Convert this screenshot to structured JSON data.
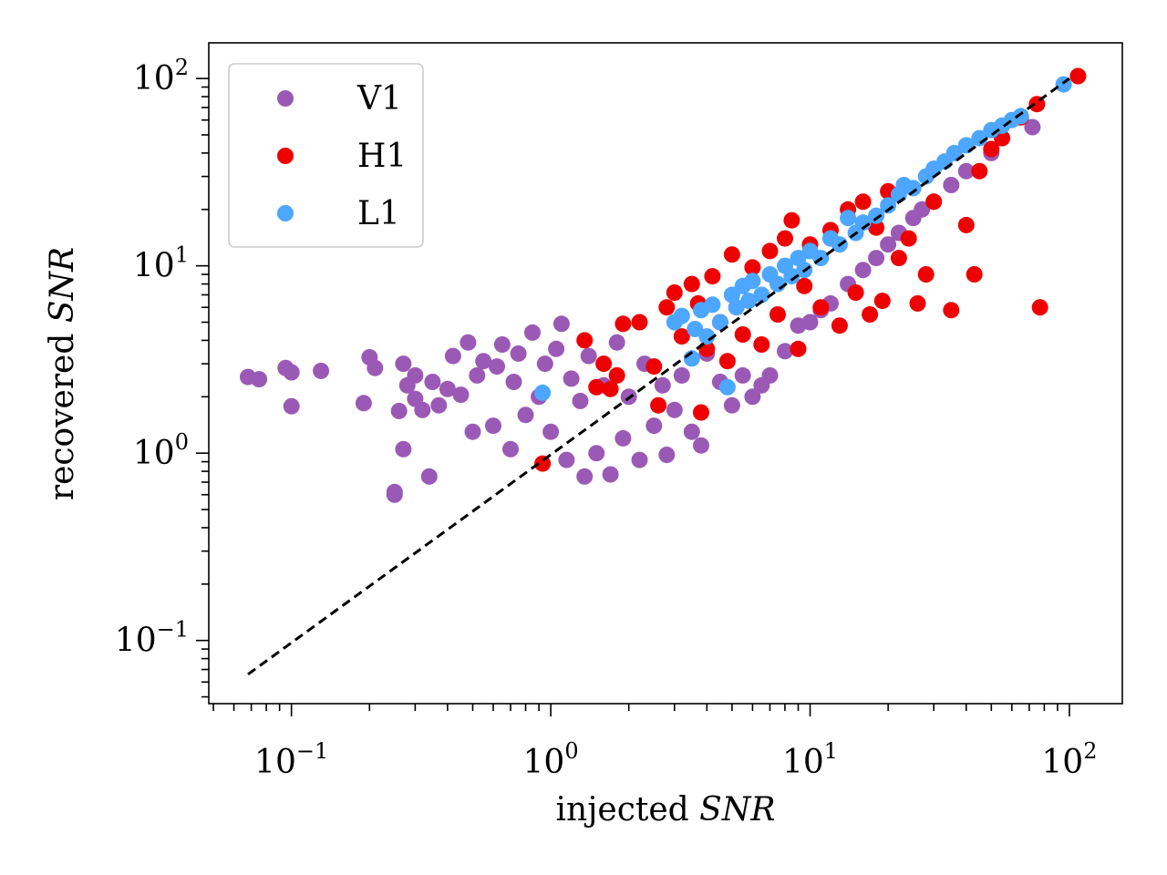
{
  "chart_data": {
    "type": "scatter",
    "title": "",
    "xlabel": "injected",
    "xlabel_var": "SNR",
    "ylabel": "recovered",
    "ylabel_var": "SNR",
    "xscale": "log",
    "yscale": "log",
    "xlim": [
      0.048,
      160
    ],
    "ylim": [
      0.046,
      155
    ],
    "x_ticks": [
      {
        "value": 0.1,
        "base": "10",
        "exp": "−1"
      },
      {
        "value": 1,
        "base": "10",
        "exp": "0"
      },
      {
        "value": 10,
        "base": "10",
        "exp": "1"
      },
      {
        "value": 100,
        "base": "10",
        "exp": "2"
      }
    ],
    "y_ticks": [
      {
        "value": 0.1,
        "base": "10",
        "exp": "−1"
      },
      {
        "value": 1,
        "base": "10",
        "exp": "0"
      },
      {
        "value": 10,
        "base": "10",
        "exp": "1"
      },
      {
        "value": 100,
        "base": "10",
        "exp": "2"
      }
    ],
    "reference_line": {
      "style": "dashed",
      "color": "#000000",
      "x": [
        0.068,
        100
      ],
      "y": [
        0.066,
        100
      ]
    },
    "legend": {
      "position": "top-left"
    },
    "series": [
      {
        "name": "V1",
        "color": "#9b59b6",
        "points": [
          [
            0.068,
            2.55
          ],
          [
            0.075,
            2.48
          ],
          [
            0.095,
            2.85
          ],
          [
            0.1,
            1.78
          ],
          [
            0.1,
            2.7
          ],
          [
            0.13,
            2.75
          ],
          [
            0.19,
            1.85
          ],
          [
            0.2,
            3.25
          ],
          [
            0.21,
            2.85
          ],
          [
            0.25,
            0.62
          ],
          [
            0.25,
            0.6
          ],
          [
            0.26,
            1.68
          ],
          [
            0.27,
            1.05
          ],
          [
            0.27,
            3.0
          ],
          [
            0.28,
            2.3
          ],
          [
            0.3,
            1.95
          ],
          [
            0.3,
            2.6
          ],
          [
            0.32,
            1.7
          ],
          [
            0.34,
            0.75
          ],
          [
            0.35,
            2.4
          ],
          [
            0.37,
            1.8
          ],
          [
            0.4,
            2.2
          ],
          [
            0.42,
            3.3
          ],
          [
            0.45,
            2.05
          ],
          [
            0.48,
            3.9
          ],
          [
            0.5,
            1.3
          ],
          [
            0.52,
            2.6
          ],
          [
            0.55,
            3.1
          ],
          [
            0.6,
            1.4
          ],
          [
            0.62,
            2.9
          ],
          [
            0.65,
            3.8
          ],
          [
            0.7,
            1.05
          ],
          [
            0.72,
            2.4
          ],
          [
            0.75,
            3.4
          ],
          [
            0.8,
            1.6
          ],
          [
            0.85,
            4.4
          ],
          [
            0.9,
            2.0
          ],
          [
            0.95,
            3.0
          ],
          [
            1.0,
            1.3
          ],
          [
            1.05,
            3.6
          ],
          [
            1.1,
            4.9
          ],
          [
            1.15,
            0.92
          ],
          [
            1.2,
            2.5
          ],
          [
            1.3,
            1.9
          ],
          [
            1.35,
            0.75
          ],
          [
            1.4,
            3.3
          ],
          [
            1.5,
            1.0
          ],
          [
            1.6,
            2.3
          ],
          [
            1.7,
            0.77
          ],
          [
            1.8,
            3.9
          ],
          [
            1.9,
            1.2
          ],
          [
            2.0,
            2.0
          ],
          [
            2.2,
            0.92
          ],
          [
            2.3,
            3.0
          ],
          [
            2.5,
            1.4
          ],
          [
            2.7,
            2.3
          ],
          [
            2.8,
            0.98
          ],
          [
            3.0,
            1.7
          ],
          [
            3.2,
            2.6
          ],
          [
            3.5,
            1.3
          ],
          [
            3.8,
            1.1
          ],
          [
            4.0,
            3.4
          ],
          [
            4.5,
            2.4
          ],
          [
            5.0,
            1.8
          ],
          [
            5.5,
            2.6
          ],
          [
            6.0,
            2.0
          ],
          [
            6.5,
            2.3
          ],
          [
            7.0,
            2.6
          ],
          [
            8.0,
            3.5
          ],
          [
            9.0,
            4.8
          ],
          [
            10.0,
            5.0
          ],
          [
            11.0,
            5.8
          ],
          [
            12.0,
            6.3
          ],
          [
            14.0,
            8.0
          ],
          [
            16.0,
            9.5
          ],
          [
            18.0,
            11.0
          ],
          [
            20.0,
            13.0
          ],
          [
            22.0,
            15.0
          ],
          [
            25.0,
            18.0
          ],
          [
            27.0,
            20.0
          ],
          [
            30.0,
            22.0
          ],
          [
            35.0,
            27.0
          ],
          [
            40.0,
            32.0
          ],
          [
            50.0,
            40.0
          ],
          [
            72.0,
            55.0
          ]
        ]
      },
      {
        "name": "H1",
        "color": "#ee0000",
        "points": [
          [
            0.93,
            0.88
          ],
          [
            1.35,
            4.0
          ],
          [
            1.5,
            2.25
          ],
          [
            1.6,
            3.0
          ],
          [
            1.7,
            2.2
          ],
          [
            1.8,
            2.6
          ],
          [
            1.9,
            4.9
          ],
          [
            2.2,
            5.0
          ],
          [
            2.5,
            2.9
          ],
          [
            2.6,
            1.8
          ],
          [
            2.8,
            6.0
          ],
          [
            3.0,
            7.2
          ],
          [
            3.2,
            4.2
          ],
          [
            3.5,
            8.0
          ],
          [
            3.7,
            6.3
          ],
          [
            3.8,
            1.65
          ],
          [
            4.0,
            3.6
          ],
          [
            4.2,
            8.8
          ],
          [
            4.5,
            5.0
          ],
          [
            4.8,
            3.1
          ],
          [
            5.0,
            11.5
          ],
          [
            5.5,
            4.3
          ],
          [
            6.0,
            9.8
          ],
          [
            6.5,
            3.8
          ],
          [
            7.0,
            12.0
          ],
          [
            7.5,
            5.5
          ],
          [
            8.0,
            14.0
          ],
          [
            8.5,
            17.5
          ],
          [
            9.0,
            3.6
          ],
          [
            9.5,
            7.8
          ],
          [
            10.0,
            13.0
          ],
          [
            11.0,
            6.0
          ],
          [
            12.0,
            15.5
          ],
          [
            13.0,
            4.8
          ],
          [
            14.0,
            20.0
          ],
          [
            15.0,
            7.2
          ],
          [
            16.0,
            22.0
          ],
          [
            17.0,
            5.5
          ],
          [
            18.0,
            16.0
          ],
          [
            19.0,
            6.5
          ],
          [
            20.0,
            25.0
          ],
          [
            22.0,
            11.0
          ],
          [
            24.0,
            14.0
          ],
          [
            26.0,
            6.3
          ],
          [
            28.0,
            9.0
          ],
          [
            30.0,
            22.0
          ],
          [
            35.0,
            5.8
          ],
          [
            40.0,
            16.5
          ],
          [
            43.0,
            9.0
          ],
          [
            45.0,
            32.0
          ],
          [
            50.0,
            42.0
          ],
          [
            55.0,
            48.0
          ],
          [
            65.0,
            62.0
          ],
          [
            75.0,
            73.0
          ],
          [
            77.0,
            6.0
          ],
          [
            108.0,
            103.0
          ]
        ]
      },
      {
        "name": "L1",
        "color": "#4da6ff",
        "points": [
          [
            0.93,
            2.1
          ],
          [
            3.0,
            5.0
          ],
          [
            3.2,
            5.4
          ],
          [
            3.5,
            3.2
          ],
          [
            3.6,
            4.6
          ],
          [
            3.8,
            5.8
          ],
          [
            4.0,
            4.2
          ],
          [
            4.2,
            6.2
          ],
          [
            4.5,
            5.0
          ],
          [
            4.8,
            2.25
          ],
          [
            5.0,
            7.0
          ],
          [
            5.2,
            6.0
          ],
          [
            5.5,
            7.8
          ],
          [
            5.8,
            6.5
          ],
          [
            6.0,
            8.3
          ],
          [
            6.5,
            7.0
          ],
          [
            7.0,
            9.0
          ],
          [
            7.5,
            8.0
          ],
          [
            8.0,
            10.0
          ],
          [
            8.5,
            8.8
          ],
          [
            9.0,
            11.0
          ],
          [
            9.5,
            9.5
          ],
          [
            10.0,
            12.0
          ],
          [
            11.0,
            11.0
          ],
          [
            12.0,
            14.0
          ],
          [
            13.0,
            13.0
          ],
          [
            14.0,
            18.0
          ],
          [
            15.0,
            15.0
          ],
          [
            16.0,
            17.0
          ],
          [
            18.0,
            18.5
          ],
          [
            20.0,
            21.0
          ],
          [
            22.0,
            24.0
          ],
          [
            23.0,
            27.0
          ],
          [
            25.0,
            26.0
          ],
          [
            28.0,
            30.0
          ],
          [
            30.0,
            33.0
          ],
          [
            33.0,
            36.0
          ],
          [
            36.0,
            40.0
          ],
          [
            40.0,
            44.0
          ],
          [
            45.0,
            48.0
          ],
          [
            50.0,
            53.0
          ],
          [
            55.0,
            56.0
          ],
          [
            60.0,
            60.0
          ],
          [
            65.0,
            63.0
          ],
          [
            95.0,
            93.0
          ]
        ]
      }
    ]
  }
}
